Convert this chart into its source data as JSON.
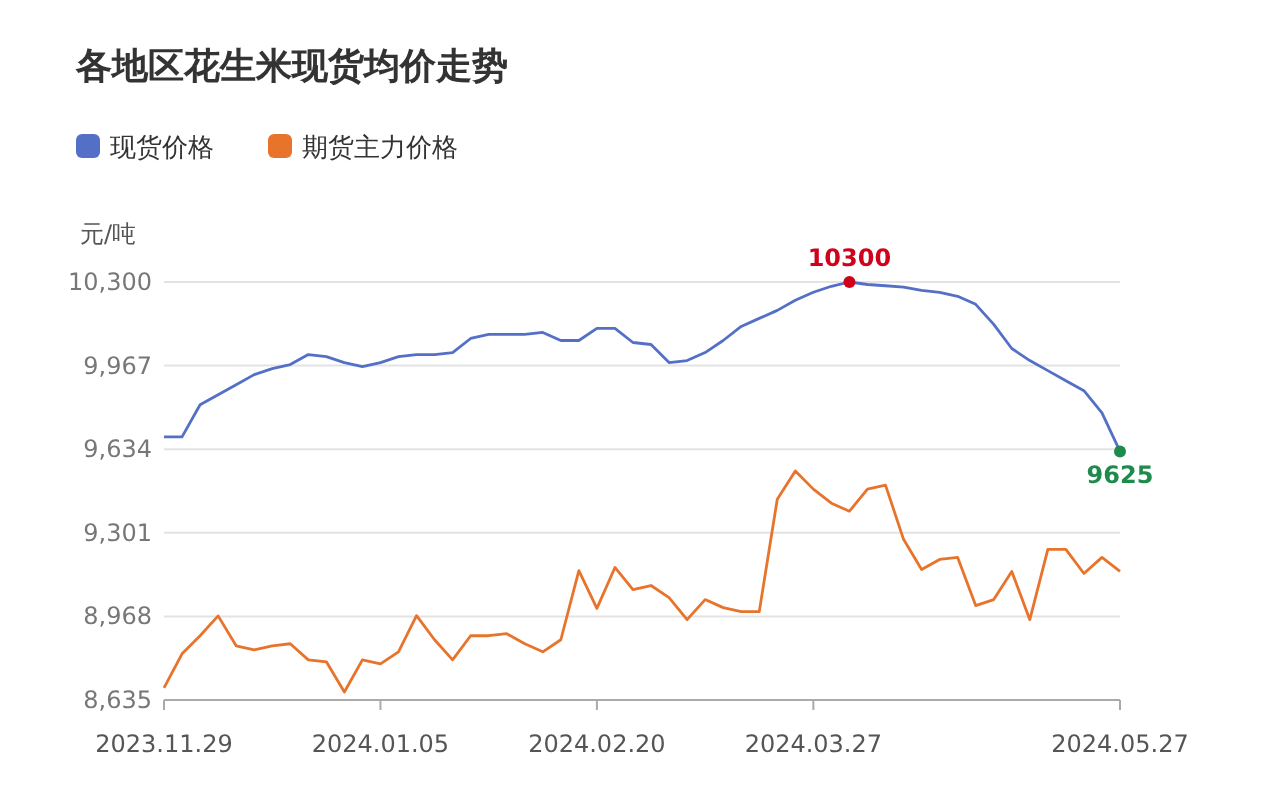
{
  "chart_data": {
    "type": "line",
    "title": "各地区花生米现货均价走势",
    "ylabel": "元/吨",
    "legend": "top left",
    "grid": "y",
    "categories": [
      "2023.11.29",
      null,
      null,
      null,
      null,
      null,
      null,
      null,
      null,
      null,
      null,
      null,
      "2024.01.05",
      null,
      null,
      null,
      null,
      null,
      null,
      null,
      null,
      null,
      null,
      null,
      "2024.02.20",
      null,
      null,
      null,
      null,
      null,
      null,
      null,
      null,
      null,
      null,
      null,
      "2024.03.27",
      null,
      null,
      null,
      null,
      null,
      null,
      null,
      null,
      null,
      null,
      null,
      null,
      null,
      null,
      null,
      null,
      "2024.05.27"
    ],
    "ylim": [
      8635,
      10300
    ],
    "yticks": [
      {
        "value": 8635,
        "label": "8,635"
      },
      {
        "value": 8968,
        "label": "8,968"
      },
      {
        "value": 9301,
        "label": "9,301"
      },
      {
        "value": 9634,
        "label": "9,634"
      },
      {
        "value": 9967,
        "label": "9,967"
      },
      {
        "value": 10300,
        "label": "10,300"
      }
    ],
    "series": [
      {
        "name": "现货价格",
        "color": "#5470c6",
        "values": [
          9683,
          9683,
          9811,
          9851,
          9891,
          9931,
          9955,
          9971,
          10011,
          10003,
          9979,
          9963,
          9979,
          10003,
          10011,
          10011,
          10019,
          10075,
          10091,
          10091,
          10091,
          10099,
          10067,
          10067,
          10115,
          10115,
          10059,
          10051,
          9979,
          9987,
          10019,
          10067,
          10123,
          10155,
          10187,
          10227,
          10259,
          10283,
          10300,
          10290,
          10285,
          10280,
          10267,
          10259,
          10243,
          10211,
          10131,
          10035,
          9987,
          9947,
          9907,
          9867,
          9779,
          9625
        ],
        "value_labels": [
          null,
          null,
          null,
          null,
          null,
          null,
          null,
          null,
          null,
          null,
          null,
          null,
          null,
          null,
          null,
          null,
          null,
          null,
          null,
          null,
          null,
          null,
          null,
          null,
          null,
          null,
          null,
          null,
          null,
          null,
          null,
          null,
          null,
          null,
          null,
          null,
          null,
          null,
          "10300",
          null,
          null,
          null,
          null,
          null,
          null,
          null,
          null,
          null,
          null,
          null,
          null,
          null,
          null,
          "9625"
        ]
      },
      {
        "name": "期货主力价格",
        "color": "#e8732b",
        "values": [
          8683,
          8819,
          8891,
          8970,
          8851,
          8835,
          8851,
          8859,
          8795,
          8787,
          8667,
          8795,
          8779,
          8827,
          8971,
          8875,
          8795,
          8891,
          8891,
          8899,
          8859,
          8827,
          8875,
          9150,
          9000,
          9163,
          9075,
          9091,
          9043,
          8955,
          9035,
          9003,
          8987,
          8987,
          9435,
          9547,
          9475,
          9419,
          9387,
          9475,
          9491,
          9275,
          9155,
          9195,
          9203,
          9011,
          9035,
          9147,
          8955,
          9235,
          9235,
          9139,
          9203,
          9147
        ]
      }
    ]
  }
}
